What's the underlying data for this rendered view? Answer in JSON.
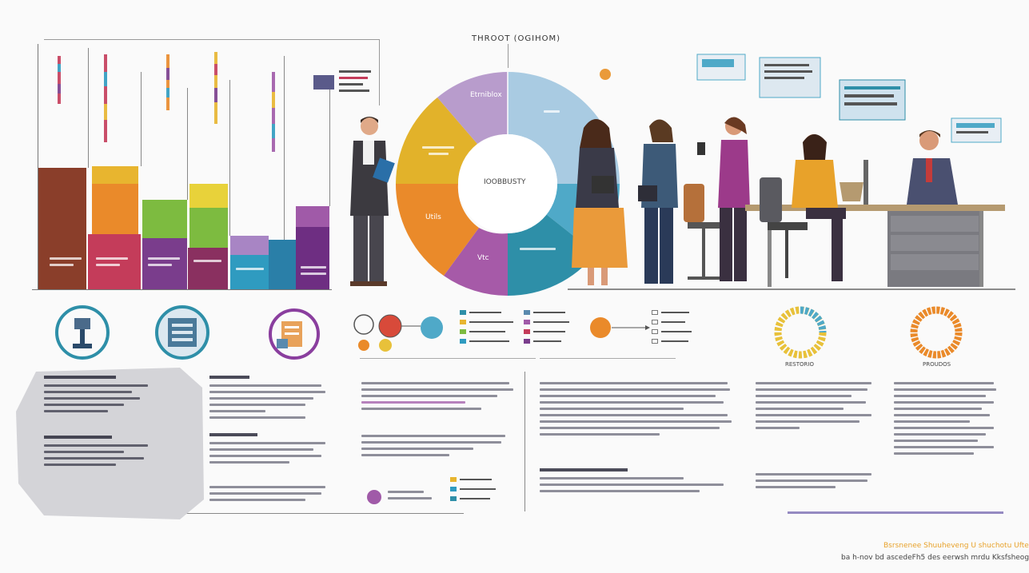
{
  "header": {
    "title": "THROOT (OGIHOM)"
  },
  "donut": {
    "center_label": "IOOBBUSTY",
    "labels": {
      "top": "Etrniblox",
      "left": "Utils",
      "bottom": "Vtc"
    },
    "colors": [
      "#b89ccc",
      "#a9cbe2",
      "#4fa9c8",
      "#2e8fa8",
      "#8a4f9e",
      "#a65aa8",
      "#ea8a2a",
      "#e2b22a"
    ]
  },
  "bars": {
    "colors": {
      "brown": "#8a3e2a",
      "red": "#c43c5a",
      "orange": "#ea8a2a",
      "yellow": "#e8c13a",
      "green": "#7dbb40",
      "purple": "#7a3d8c",
      "violet": "#a05aa8",
      "teal": "#2f9bc0"
    }
  },
  "rings": {
    "left_label": "RESTORIO",
    "right_label": "PROUDOS"
  },
  "footer": {
    "line1": "Bsrsnenee Shuuheveng U shuchotu Ufte",
    "line2": "ba h-nov bd ascedeFh5 des eerwsh mrdu Kksfsheog"
  }
}
